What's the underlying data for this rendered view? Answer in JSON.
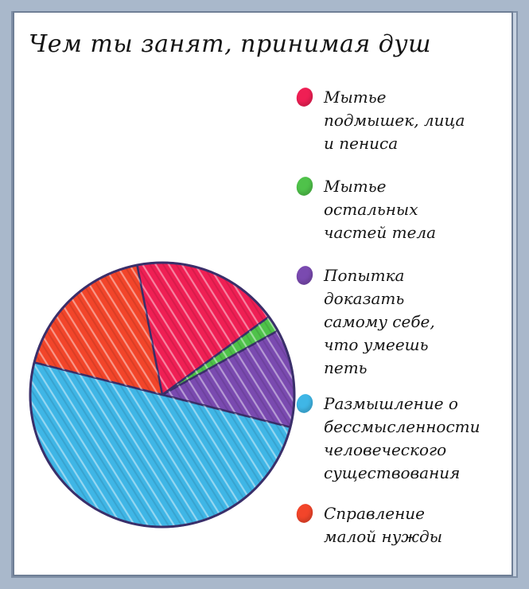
{
  "chart_data": {
    "type": "pie",
    "title": "Чем ты занят, принимая душ",
    "slices": [
      {
        "label": "Мытье\nподмышек, лица\nи пениса",
        "value": 18,
        "color": "#ef1f54"
      },
      {
        "label": "Мытье\nостальных\nчастей тела",
        "value": 2,
        "color": "#4fc24a"
      },
      {
        "label": "Попытка\nдоказать\nсамому себе,\nчто умеешь\nпеть",
        "value": 12,
        "color": "#7a4ab0"
      },
      {
        "label": "Размышление о\nбессмысленности\nчеловеческого\nсуществования",
        "value": 50,
        "color": "#3fb6e6"
      },
      {
        "label": "Справление\nмалой нужды",
        "value": 18,
        "color": "#f2452a"
      }
    ],
    "start_angle_deg": -101,
    "legend_position": "right"
  }
}
